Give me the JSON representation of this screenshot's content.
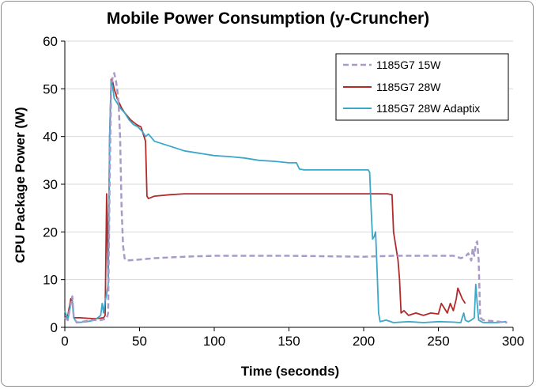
{
  "chart_data": {
    "type": "line",
    "title": "Mobile Power Consumption (y-Cruncher)",
    "xlabel": "Time (seconds)",
    "ylabel": "CPU Package Power (W)",
    "xlim": [
      0,
      300
    ],
    "ylim": [
      0,
      60
    ],
    "xticks": [
      0,
      50,
      100,
      150,
      200,
      250,
      300
    ],
    "yticks": [
      0,
      10,
      20,
      30,
      40,
      50,
      60
    ],
    "grid": "horizontal",
    "legend": "top-right",
    "series": [
      {
        "name": "1185G7 15W",
        "color": "#a99bc8",
        "dash": "dashed",
        "points": [
          [
            0,
            2
          ],
          [
            2,
            1.5
          ],
          [
            4,
            5
          ],
          [
            5,
            6.5
          ],
          [
            6,
            2
          ],
          [
            8,
            1
          ],
          [
            12,
            1.2
          ],
          [
            18,
            1.5
          ],
          [
            24,
            1.5
          ],
          [
            28,
            1.8
          ],
          [
            29,
            3
          ],
          [
            30,
            30
          ],
          [
            31,
            50
          ],
          [
            32,
            52.5
          ],
          [
            33,
            53.3
          ],
          [
            34,
            52
          ],
          [
            35,
            50
          ],
          [
            36,
            47
          ],
          [
            37,
            40
          ],
          [
            38,
            25
          ],
          [
            39,
            17
          ],
          [
            40,
            14.5
          ],
          [
            41,
            14
          ],
          [
            50,
            14.2
          ],
          [
            60,
            14.5
          ],
          [
            80,
            14.8
          ],
          [
            100,
            15
          ],
          [
            150,
            15
          ],
          [
            200,
            14.8
          ],
          [
            220,
            15
          ],
          [
            250,
            15
          ],
          [
            260,
            15
          ],
          [
            265,
            14.5
          ],
          [
            268,
            14.8
          ],
          [
            270,
            15.5
          ],
          [
            272,
            14
          ],
          [
            273,
            16.5
          ],
          [
            274,
            15
          ],
          [
            275,
            17.5
          ],
          [
            276,
            18
          ],
          [
            277,
            14
          ],
          [
            278,
            2
          ],
          [
            280,
            1.5
          ],
          [
            290,
            1.2
          ],
          [
            296,
            1
          ]
        ]
      },
      {
        "name": "1185G7 28W",
        "color": "#b32a2a",
        "dash": "solid",
        "points": [
          [
            0,
            2
          ],
          [
            2,
            2.5
          ],
          [
            4,
            6
          ],
          [
            5,
            5.5
          ],
          [
            6,
            2
          ],
          [
            10,
            2
          ],
          [
            20,
            1.8
          ],
          [
            26,
            2
          ],
          [
            27,
            2.5
          ],
          [
            28,
            28
          ],
          [
            29,
            10
          ],
          [
            30,
            40
          ],
          [
            31,
            52
          ],
          [
            32,
            51.5
          ],
          [
            33,
            50
          ],
          [
            35,
            48
          ],
          [
            38,
            46
          ],
          [
            40,
            45
          ],
          [
            44,
            43.5
          ],
          [
            48,
            42.5
          ],
          [
            51,
            42
          ],
          [
            53,
            40
          ],
          [
            54,
            39
          ],
          [
            55,
            27.5
          ],
          [
            56,
            27
          ],
          [
            60,
            27.5
          ],
          [
            70,
            27.8
          ],
          [
            80,
            28
          ],
          [
            100,
            28
          ],
          [
            120,
            28
          ],
          [
            140,
            28
          ],
          [
            160,
            28
          ],
          [
            180,
            28
          ],
          [
            200,
            28
          ],
          [
            210,
            28
          ],
          [
            216,
            28
          ],
          [
            219,
            27.8
          ],
          [
            220,
            20
          ],
          [
            223,
            14
          ],
          [
            224,
            10
          ],
          [
            225,
            3
          ],
          [
            227,
            3.5
          ],
          [
            230,
            2.5
          ],
          [
            235,
            3
          ],
          [
            240,
            2.5
          ],
          [
            245,
            3
          ],
          [
            250,
            2.8
          ],
          [
            252,
            5
          ],
          [
            254,
            4
          ],
          [
            256,
            3
          ],
          [
            258,
            5
          ],
          [
            260,
            3.5
          ],
          [
            262,
            6
          ],
          [
            263,
            8.2
          ],
          [
            264,
            7.5
          ],
          [
            266,
            6
          ],
          [
            268,
            5
          ]
        ]
      },
      {
        "name": "1185G7 28W Adaptix",
        "color": "#3aa8c8",
        "dash": "solid",
        "points": [
          [
            0,
            3.5
          ],
          [
            2,
            1.5
          ],
          [
            4,
            5
          ],
          [
            5,
            5.5
          ],
          [
            6,
            2
          ],
          [
            8,
            1
          ],
          [
            15,
            1.2
          ],
          [
            20,
            1.5
          ],
          [
            24,
            2.5
          ],
          [
            25,
            5
          ],
          [
            26,
            3
          ],
          [
            27,
            5.5
          ],
          [
            28,
            7
          ],
          [
            29,
            9
          ],
          [
            30,
            40
          ],
          [
            31,
            51.5
          ],
          [
            32,
            50.5
          ],
          [
            33,
            48
          ],
          [
            35,
            47
          ],
          [
            37,
            46
          ],
          [
            40,
            45
          ],
          [
            43,
            43.5
          ],
          [
            46,
            42.5
          ],
          [
            49,
            42
          ],
          [
            52,
            41
          ],
          [
            54,
            40
          ],
          [
            56,
            40.5
          ],
          [
            60,
            39
          ],
          [
            65,
            38.5
          ],
          [
            70,
            38
          ],
          [
            80,
            37
          ],
          [
            90,
            36.5
          ],
          [
            100,
            36
          ],
          [
            110,
            35.8
          ],
          [
            120,
            35.5
          ],
          [
            130,
            35
          ],
          [
            140,
            34.8
          ],
          [
            150,
            34.5
          ],
          [
            155,
            34.5
          ],
          [
            157,
            33.2
          ],
          [
            160,
            33
          ],
          [
            170,
            33
          ],
          [
            180,
            33
          ],
          [
            190,
            33
          ],
          [
            200,
            33
          ],
          [
            203,
            33
          ],
          [
            204,
            32.5
          ],
          [
            205,
            25
          ],
          [
            206,
            18.5
          ],
          [
            207,
            19
          ],
          [
            208,
            20
          ],
          [
            209,
            12
          ],
          [
            210,
            3
          ],
          [
            211,
            1.2
          ],
          [
            215,
            1.5
          ],
          [
            220,
            1
          ],
          [
            230,
            1.2
          ],
          [
            240,
            1
          ],
          [
            250,
            1.2
          ],
          [
            260,
            1.1
          ],
          [
            265,
            1
          ],
          [
            267,
            3
          ],
          [
            268,
            1.5
          ],
          [
            270,
            1.2
          ],
          [
            272,
            1.5
          ],
          [
            274,
            2
          ],
          [
            275,
            9
          ],
          [
            276,
            5
          ],
          [
            277,
            1.5
          ],
          [
            280,
            1
          ],
          [
            290,
            1
          ],
          [
            295,
            1.2
          ],
          [
            296,
            1
          ]
        ]
      }
    ]
  }
}
